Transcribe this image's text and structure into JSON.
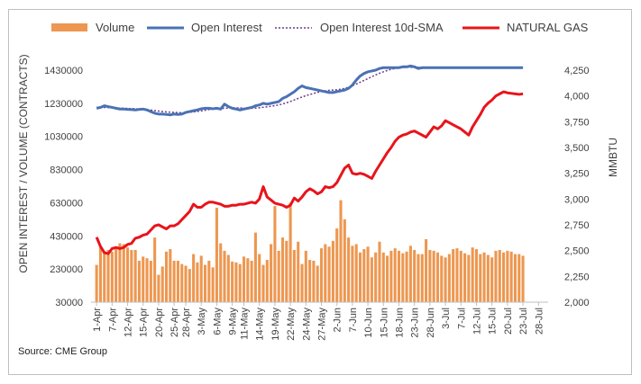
{
  "source": "Source: CME Group",
  "colors": {
    "volume": "#ED9750",
    "open_interest": "#4A72B5",
    "sma": "#6C3A8C",
    "natural_gas": "#E8141B"
  },
  "chart_data": {
    "type": "bar",
    "legend": [
      "Volume",
      "Open Interest",
      "Open Interest 10d-SMA",
      "NATURAL GAS"
    ],
    "legend_position": "top",
    "grid": false,
    "ylabel_left": "OPEN INTEREST / VOLUME (CONTRACTS)",
    "ylabel_right": "MMBTU",
    "left_ticks": [
      "1430000",
      "1230000",
      "1030000",
      "830000",
      "630000",
      "430000",
      "230000",
      "30000"
    ],
    "left_tick_values": [
      1430000,
      1230000,
      1030000,
      830000,
      630000,
      430000,
      230000,
      30000
    ],
    "right_ticks": [
      "4,250",
      "4,000",
      "3,750",
      "3,500",
      "3,250",
      "3,000",
      "2,750",
      "2,500",
      "2,250",
      "2,000"
    ],
    "right_tick_values": [
      4250,
      4000,
      3750,
      3500,
      3250,
      3000,
      2750,
      2500,
      2250,
      2000
    ],
    "x_ticks": [
      "1-Apr",
      "7-Apr",
      "12-Apr",
      "15-Apr",
      "20-Apr",
      "25-Apr",
      "28-Apr",
      "3-May",
      "6-May",
      "9-May",
      "11-May",
      "14-May",
      "19-May",
      "22-May",
      "24-May",
      "27-May",
      "2-Jun",
      "7-Jun",
      "10-Jun",
      "15-Jun",
      "18-Jun",
      "23-Jun",
      "28-Jun",
      "3-Jul",
      "7-Jul",
      "12-Jul",
      "15-Jul",
      "20-Jul",
      "23-Jul",
      "28-Jul"
    ],
    "x_tick_index": [
      0,
      4,
      8,
      12,
      16,
      20,
      23,
      27,
      31,
      35,
      38,
      42,
      46,
      50,
      54,
      58,
      62,
      66,
      70,
      74,
      78,
      82,
      86,
      90,
      94,
      98,
      102,
      106,
      110,
      114
    ],
    "ylim_left": [
      30000,
      1430000
    ],
    "ylim_right": [
      2000,
      4250
    ],
    "n_points": 111,
    "series": [
      {
        "name": "Volume",
        "type": "bar",
        "values": [
          255000,
          360000,
          335000,
          345000,
          335000,
          360000,
          385000,
          380000,
          360000,
          345000,
          345000,
          280000,
          305000,
          295000,
          280000,
          420000,
          195000,
          245000,
          335000,
          350000,
          280000,
          280000,
          260000,
          250000,
          230000,
          320000,
          270000,
          310000,
          255000,
          280000,
          240000,
          600000,
          385000,
          340000,
          315000,
          275000,
          270000,
          260000,
          305000,
          295000,
          280000,
          450000,
          320000,
          255000,
          285000,
          380000,
          610000,
          340000,
          420000,
          400000,
          630000,
          345000,
          395000,
          260000,
          340000,
          285000,
          280000,
          250000,
          355000,
          380000,
          365000,
          400000,
          475000,
          645000,
          530000,
          420000,
          370000,
          380000,
          330000,
          350000,
          365000,
          300000,
          330000,
          395000,
          330000,
          310000,
          340000,
          355000,
          340000,
          325000,
          335000,
          370000,
          345000,
          320000,
          320000,
          410000,
          345000,
          340000,
          330000,
          310000,
          300000,
          320000,
          350000,
          355000,
          340000,
          325000,
          315000,
          360000,
          350000,
          320000,
          330000,
          315000,
          300000,
          340000,
          345000,
          330000,
          340000,
          335000,
          320000,
          320000,
          310000
        ]
      },
      {
        "name": "Open Interest",
        "type": "line",
        "values": [
          1200000,
          1205000,
          1215000,
          1210000,
          1205000,
          1200000,
          1195000,
          1195000,
          1193000,
          1192000,
          1190000,
          1193000,
          1195000,
          1190000,
          1180000,
          1170000,
          1165000,
          1165000,
          1163000,
          1160000,
          1165000,
          1163000,
          1165000,
          1175000,
          1180000,
          1185000,
          1190000,
          1197000,
          1200000,
          1200000,
          1197000,
          1200000,
          1195000,
          1225000,
          1210000,
          1200000,
          1195000,
          1190000,
          1195000,
          1200000,
          1205000,
          1215000,
          1220000,
          1230000,
          1225000,
          1230000,
          1235000,
          1240000,
          1260000,
          1270000,
          1285000,
          1300000,
          1320000,
          1335000,
          1325000,
          1320000,
          1315000,
          1310000,
          1305000,
          1300000,
          1295000,
          1295000,
          1300000,
          1305000,
          1310000,
          1320000,
          1340000,
          1370000,
          1395000,
          1410000,
          1420000,
          1425000,
          1430000,
          1440000,
          1445000,
          1445000,
          1445000,
          1445000,
          1445000,
          1450000,
          1450000,
          1455000,
          1450000,
          1440000,
          1445000,
          1445000,
          1445000,
          1445000,
          1445000,
          1445000,
          1445000,
          1445000,
          1445000,
          1445000,
          1445000,
          1445000,
          1445000,
          1445000,
          1445000,
          1445000,
          1445000,
          1445000,
          1445000,
          1445000,
          1445000,
          1445000,
          1445000,
          1445000,
          1445000,
          1445000,
          1445000
        ]
      },
      {
        "name": "Open Interest 10d-SMA",
        "type": "line",
        "values": [
          1205000,
          1205000,
          1205000,
          1204000,
          1203000,
          1202000,
          1201000,
          1200000,
          1199000,
          1198000,
          1197000,
          1196000,
          1194000,
          1192000,
          1189000,
          1186000,
          1183000,
          1180000,
          1178000,
          1176000,
          1175000,
          1174000,
          1173000,
          1174000,
          1176000,
          1178000,
          1181000,
          1184000,
          1188000,
          1192000,
          1195000,
          1197000,
          1198000,
          1200000,
          1201000,
          1202000,
          1202000,
          1202000,
          1201000,
          1200000,
          1200000,
          1201000,
          1203000,
          1206000,
          1209000,
          1212000,
          1216000,
          1220000,
          1226000,
          1233000,
          1241000,
          1250000,
          1259000,
          1268000,
          1276000,
          1283000,
          1290000,
          1296000,
          1301000,
          1305000,
          1308000,
          1310000,
          1312000,
          1315000,
          1320000,
          1327000,
          1336000,
          1346000,
          1357000,
          1368000,
          1379000,
          1390000,
          1401000,
          1411000,
          1420000,
          1428000,
          1435000,
          1440000,
          1444000,
          1446000,
          1447000,
          1447000,
          1447000,
          1447000,
          1447000,
          1447000,
          1447000,
          1447000,
          1447000,
          1447000,
          1447000,
          1447000,
          1447000,
          1447000,
          1447000,
          1447000,
          1447000,
          1447000,
          1447000,
          1447000,
          1447000,
          1447000,
          1447000,
          1447000,
          1447000,
          1447000,
          1447000,
          1447000,
          1447000,
          1447000,
          1447000
        ]
      },
      {
        "name": "NATURAL GAS",
        "type": "line",
        "axis": "right",
        "values": [
          2630,
          2540,
          2480,
          2470,
          2520,
          2530,
          2520,
          2530,
          2560,
          2570,
          2620,
          2630,
          2650,
          2660,
          2700,
          2740,
          2750,
          2730,
          2710,
          2740,
          2740,
          2760,
          2800,
          2840,
          2880,
          2950,
          2920,
          2920,
          2950,
          2970,
          2970,
          2960,
          2950,
          2930,
          2930,
          2940,
          2940,
          2950,
          2950,
          2960,
          2970,
          2960,
          3000,
          3120,
          3020,
          2990,
          2960,
          2950,
          2940,
          2920,
          2940,
          3010,
          2980,
          3020,
          3070,
          3100,
          3080,
          3050,
          3070,
          3120,
          3110,
          3120,
          3160,
          3230,
          3300,
          3330,
          3250,
          3240,
          3250,
          3240,
          3220,
          3200,
          3270,
          3330,
          3390,
          3450,
          3500,
          3560,
          3600,
          3620,
          3630,
          3650,
          3660,
          3640,
          3620,
          3600,
          3650,
          3700,
          3680,
          3710,
          3760,
          3740,
          3720,
          3700,
          3680,
          3650,
          3620,
          3700,
          3760,
          3820,
          3890,
          3930,
          3960,
          4000,
          4020,
          4040,
          4030,
          4025,
          4020,
          4015,
          4020
        ]
      }
    ]
  }
}
